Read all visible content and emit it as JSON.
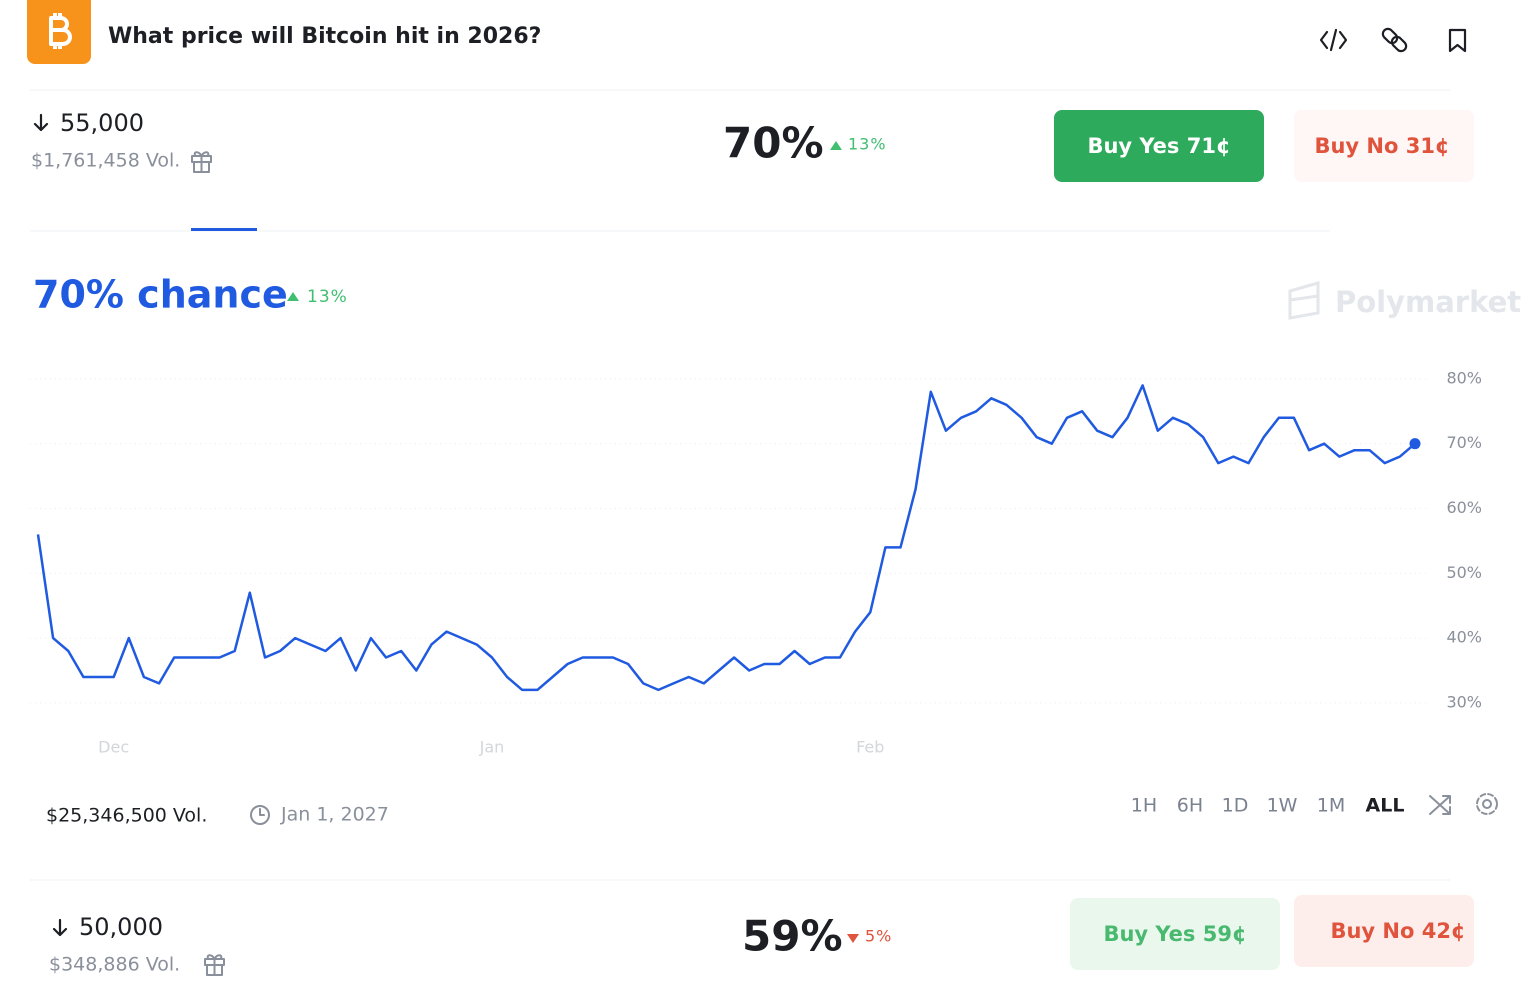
{
  "header": {
    "title": "What price will Bitcoin hit in 2026?"
  },
  "markets": [
    {
      "label": "55,000",
      "volume": "$1,761,458 Vol.",
      "chance": "70%",
      "change": "13%",
      "buy_yes": "Buy Yes 71¢",
      "buy_no": "Buy No 31¢"
    },
    {
      "label": "50,000",
      "volume": "$348,886 Vol.",
      "chance": "59%",
      "change": "5%",
      "buy_yes": "Buy Yes 59¢",
      "buy_no": "Buy No 42¢"
    }
  ],
  "chart_data": {
    "type": "line",
    "headline": "70% chance",
    "change": "13%",
    "watermark": "Polymarket",
    "categories": [
      null,
      null,
      null,
      null,
      null,
      "Dec",
      null,
      null,
      null,
      null,
      null,
      null,
      null,
      null,
      null,
      null,
      null,
      null,
      null,
      null,
      null,
      null,
      null,
      null,
      null,
      null,
      null,
      null,
      null,
      null,
      "Jan",
      null,
      null,
      null,
      null,
      null,
      null,
      null,
      null,
      null,
      null,
      null,
      null,
      null,
      null,
      null,
      null,
      null,
      null,
      null,
      null,
      null,
      null,
      null,
      null,
      "Feb",
      null,
      null,
      null,
      null,
      null,
      null,
      null,
      null,
      null,
      null,
      null,
      null,
      null,
      null,
      null,
      null,
      null,
      null,
      null,
      null,
      null,
      null,
      null,
      null,
      null,
      null,
      null,
      null,
      null,
      null,
      null,
      null,
      null,
      null,
      null,
      null
    ],
    "series": [
      {
        "color": "#1f5ae0",
        "values": [
          56,
          40,
          38,
          34,
          34,
          34,
          40,
          34,
          33,
          37,
          37,
          37,
          37,
          38,
          47,
          37,
          38,
          40,
          39,
          38,
          40,
          35,
          40,
          37,
          38,
          35,
          39,
          41,
          40,
          39,
          37,
          34,
          32,
          32,
          34,
          36,
          37,
          37,
          37,
          36,
          33,
          32,
          33,
          34,
          33,
          35,
          37,
          35,
          36,
          36,
          38,
          36,
          37,
          37,
          41,
          44,
          54,
          54,
          63,
          78,
          72,
          74,
          75,
          77,
          76,
          74,
          71,
          70,
          74,
          75,
          72,
          71,
          74,
          79,
          72,
          74,
          73,
          71,
          67,
          68,
          67,
          71,
          74,
          74,
          69,
          70,
          68,
          69,
          69,
          67,
          68,
          70
        ]
      }
    ],
    "ylim": [
      26,
      86
    ],
    "yticks": [
      {
        "value": 30,
        "label": "30%"
      },
      {
        "value": 40,
        "label": "40%"
      },
      {
        "value": 50,
        "label": "50%"
      },
      {
        "value": 60,
        "label": "60%"
      },
      {
        "value": 70,
        "label": "70%"
      },
      {
        "value": 80,
        "label": "80%"
      }
    ],
    "grid": true
  },
  "footer": {
    "volume": "$25,346,500 Vol.",
    "end_date": "Jan 1, 2027",
    "ranges": [
      "1H",
      "6H",
      "1D",
      "1W",
      "1M",
      "ALL"
    ]
  }
}
